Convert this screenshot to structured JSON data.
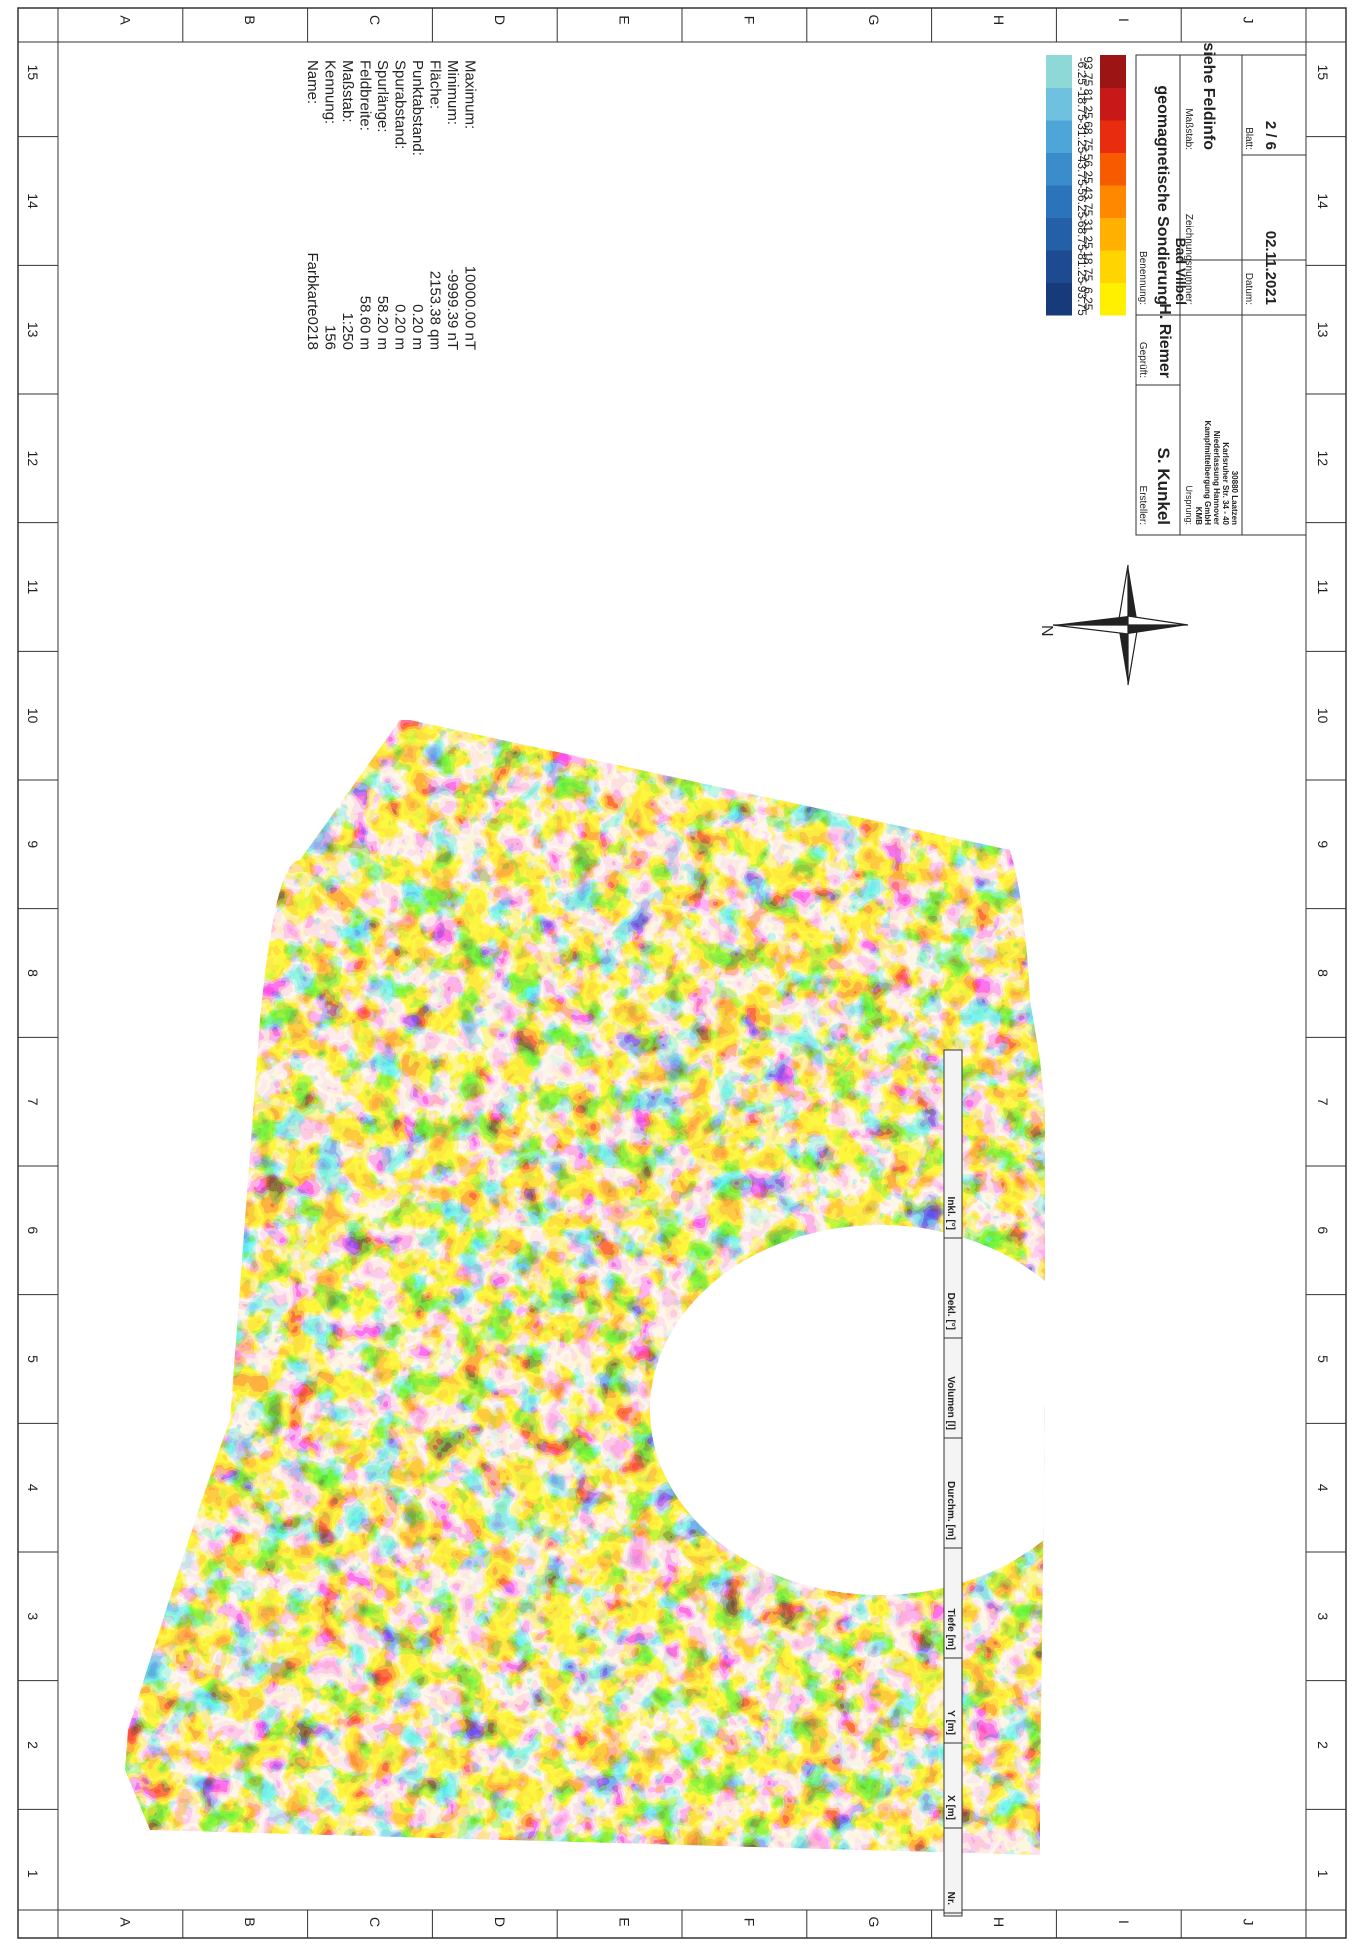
{
  "grid": {
    "numbers": [
      "1",
      "2",
      "3",
      "4",
      "5",
      "6",
      "7",
      "8",
      "9",
      "10",
      "11",
      "12",
      "13",
      "14",
      "15"
    ],
    "letters": [
      "A",
      "B",
      "C",
      "D",
      "E",
      "F",
      "G",
      "H",
      "I",
      "J"
    ]
  },
  "field_info": {
    "labels": [
      "Name:",
      "Kennung:",
      "Maßstab:",
      "Feldbreite:",
      "Spurlänge:",
      "Spurabstand:",
      "Punktabstand:",
      "Fläche:",
      "Minimum:",
      "Maximum:"
    ],
    "values": [
      "Farbkarte0218",
      "156",
      "1:250",
      "58.60 m",
      "58.20 m",
      "0.20 m",
      "0.20 m",
      "2153.38 qm",
      "-9999.39 nT",
      "10000.00 nT"
    ]
  },
  "legend": {
    "negative_labels": [
      "-93.75",
      "-81.25",
      "-68.75",
      "-56.25",
      "-43.75",
      "-31.25",
      "-18.75",
      "-6.25"
    ],
    "positive_labels": [
      "6.25",
      "18.75",
      "31.25",
      "43.75",
      "56.25",
      "68.75",
      "81.25",
      "93.75"
    ],
    "negative_colors": [
      "#173a7a",
      "#1d4a90",
      "#2460a8",
      "#2b74bb",
      "#3a8ccb",
      "#4ea6d8",
      "#6ec2e0",
      "#8fd8d8"
    ],
    "positive_colors": [
      "#fff000",
      "#ffd400",
      "#ffb000",
      "#ff8800",
      "#f85a00",
      "#e82c10",
      "#c81818",
      "#9c1414"
    ]
  },
  "title_block": {
    "ersteller_label": "Ersteller:",
    "ersteller": "S. Kunkel",
    "geprueft_label": "Geprüft:",
    "geprueft": "H. Riemer",
    "ursprung_label": "Ursprung:",
    "ursprung_lines": [
      "KMB",
      "Kampfmittelbergung GmbH",
      "Niederlassung Hannover",
      "Karlsruher Str. 34 - 40",
      "30880 Laatzen"
    ],
    "benennung_label": "Benennung:",
    "benennung_1": "geomagnetische Sondierung",
    "benennung_2": "Bad Vilbel",
    "zeichnung_label": "Zeichnungsnummer:",
    "massstab_label": "Maßstab:",
    "massstab": "siehe Feldinfo",
    "datum_label": "Datum:",
    "datum": "02.11.2021",
    "blatt_label": "Blatt:",
    "blatt": "2  /  6"
  },
  "north_label": "N",
  "table_headers": [
    "Nr.",
    "X [m]",
    "Y [m]",
    "Tiefe [m]",
    "Durchm. [m]",
    "Volumen [l]",
    "Dekl. [°]",
    "Inkl. [°]"
  ]
}
